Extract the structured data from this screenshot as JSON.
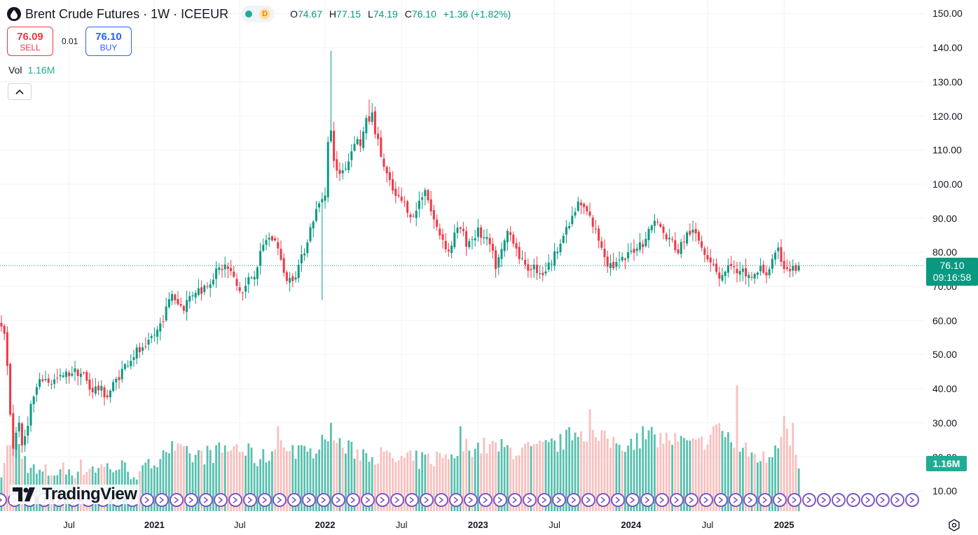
{
  "legend": {
    "title": "Brent Crude Futures · 1W · ICEEUR",
    "status_letter": "D",
    "open_label": "O",
    "open": "74.67",
    "high_label": "H",
    "high": "77.15",
    "low_label": "L",
    "low": "74.19",
    "close_label": "C",
    "close": "76.10",
    "change": "+1.36 (+1.82%)"
  },
  "trade": {
    "sell_price": "76.09",
    "sell_label": "SELL",
    "spread": "0.01",
    "buy_price": "76.10",
    "buy_label": "BUY"
  },
  "volume_legend": {
    "label": "Vol",
    "value": "1.16M"
  },
  "price_tag": {
    "price": "76.10",
    "countdown": "09:16:58"
  },
  "volume_tag": "1.16M",
  "logo_text": "TradingView",
  "colors": {
    "up": "#089981",
    "down": "#f23645",
    "vol_up": "#22ab94",
    "vol_down": "#f7a9a7",
    "grid": "#f0f3fa",
    "events": "#7e57c2"
  },
  "chart_data": {
    "type": "candlestick",
    "symbol": "Brent Crude Futures",
    "interval": "1W",
    "exchange": "ICEEUR",
    "ylim": [
      5,
      153
    ],
    "y_ticks": [
      "150.00",
      "140.00",
      "130.00",
      "120.00",
      "110.00",
      "100.00",
      "90.00",
      "80.00",
      "70.00",
      "60.00",
      "50.00",
      "40.00",
      "30.00",
      "20.00",
      "10.00"
    ],
    "x_ticks": [
      {
        "label": "Jul",
        "week": 23,
        "year": false
      },
      {
        "label": "2021",
        "week": 52,
        "year": true
      },
      {
        "label": "Jul",
        "week": 81,
        "year": false
      },
      {
        "label": "2022",
        "week": 110,
        "year": true
      },
      {
        "label": "Jul",
        "week": 136,
        "year": false
      },
      {
        "label": "2023",
        "week": 162,
        "year": true
      },
      {
        "label": "Jul",
        "week": 188,
        "year": false
      },
      {
        "label": "2024",
        "week": 214,
        "year": true
      },
      {
        "label": "Jul",
        "week": 240,
        "year": false
      },
      {
        "label": "2025",
        "week": 266,
        "year": true
      }
    ],
    "first_week": 0,
    "last_week": 271,
    "last_candle": {
      "open": 74.67,
      "high": 77.15,
      "low": 74.19,
      "close": 76.1
    },
    "last_volume": "1.16M",
    "close_anchors": [
      [
        0,
        58
      ],
      [
        1,
        55
      ],
      [
        2,
        46
      ],
      [
        3,
        33
      ],
      [
        4,
        23
      ],
      [
        5,
        27
      ],
      [
        6,
        31
      ],
      [
        7,
        22
      ],
      [
        8,
        26
      ],
      [
        10,
        35
      ],
      [
        12,
        40
      ],
      [
        14,
        43
      ],
      [
        17,
        42
      ],
      [
        20,
        43
      ],
      [
        24,
        45
      ],
      [
        26,
        45
      ],
      [
        28,
        44
      ],
      [
        30,
        40
      ],
      [
        33,
        40
      ],
      [
        36,
        38
      ],
      [
        38,
        41
      ],
      [
        40,
        44
      ],
      [
        43,
        48
      ],
      [
        46,
        51
      ],
      [
        49,
        51
      ],
      [
        51,
        55
      ],
      [
        53,
        57
      ],
      [
        56,
        63
      ],
      [
        58,
        68
      ],
      [
        60,
        65
      ],
      [
        62,
        64
      ],
      [
        64,
        67
      ],
      [
        66,
        69
      ],
      [
        68,
        69
      ],
      [
        70,
        71
      ],
      [
        72,
        73
      ],
      [
        74,
        75
      ],
      [
        76,
        76
      ],
      [
        78,
        74
      ],
      [
        80,
        70
      ],
      [
        82,
        68
      ],
      [
        84,
        72
      ],
      [
        86,
        74
      ],
      [
        88,
        79
      ],
      [
        90,
        84
      ],
      [
        92,
        84
      ],
      [
        94,
        82
      ],
      [
        96,
        73
      ],
      [
        98,
        72
      ],
      [
        100,
        74
      ],
      [
        102,
        78
      ],
      [
        104,
        84
      ],
      [
        106,
        90
      ],
      [
        108,
        94
      ],
      [
        110,
        98
      ],
      [
        111,
        112
      ],
      [
        112,
        115
      ],
      [
        113,
        108
      ],
      [
        114,
        103
      ],
      [
        116,
        104
      ],
      [
        118,
        107
      ],
      [
        120,
        113
      ],
      [
        122,
        112
      ],
      [
        124,
        118
      ],
      [
        126,
        120
      ],
      [
        128,
        112
      ],
      [
        130,
        105
      ],
      [
        132,
        100
      ],
      [
        134,
        96
      ],
      [
        136,
        95
      ],
      [
        138,
        93
      ],
      [
        140,
        90
      ],
      [
        142,
        95
      ],
      [
        144,
        99
      ],
      [
        146,
        92
      ],
      [
        148,
        87
      ],
      [
        150,
        84
      ],
      [
        152,
        80
      ],
      [
        154,
        85
      ],
      [
        156,
        87
      ],
      [
        158,
        83
      ],
      [
        160,
        84
      ],
      [
        162,
        86
      ],
      [
        164,
        84
      ],
      [
        166,
        82
      ],
      [
        168,
        76
      ],
      [
        170,
        80
      ],
      [
        172,
        86
      ],
      [
        174,
        84
      ],
      [
        176,
        79
      ],
      [
        178,
        75
      ],
      [
        180,
        76
      ],
      [
        182,
        75
      ],
      [
        184,
        74
      ],
      [
        186,
        76
      ],
      [
        188,
        79
      ],
      [
        190,
        84
      ],
      [
        192,
        86
      ],
      [
        194,
        90
      ],
      [
        196,
        94
      ],
      [
        198,
        93
      ],
      [
        200,
        90
      ],
      [
        202,
        86
      ],
      [
        204,
        82
      ],
      [
        206,
        77
      ],
      [
        208,
        76
      ],
      [
        210,
        77
      ],
      [
        212,
        78
      ],
      [
        214,
        80
      ],
      [
        216,
        82
      ],
      [
        218,
        83
      ],
      [
        220,
        86
      ],
      [
        222,
        90
      ],
      [
        224,
        87
      ],
      [
        226,
        84
      ],
      [
        228,
        83
      ],
      [
        230,
        80
      ],
      [
        232,
        84
      ],
      [
        234,
        86
      ],
      [
        236,
        85
      ],
      [
        238,
        82
      ],
      [
        240,
        79
      ],
      [
        242,
        77
      ],
      [
        244,
        73
      ],
      [
        246,
        74
      ],
      [
        248,
        77
      ],
      [
        250,
        73
      ],
      [
        252,
        74
      ],
      [
        254,
        73
      ],
      [
        256,
        73
      ],
      [
        258,
        75
      ],
      [
        260,
        74
      ],
      [
        262,
        77
      ],
      [
        264,
        80
      ],
      [
        266,
        76
      ],
      [
        268,
        75
      ],
      [
        270,
        75
      ],
      [
        271,
        76.1
      ]
    ],
    "volume_anchors": [
      [
        0,
        17
      ],
      [
        4,
        27
      ],
      [
        8,
        19
      ],
      [
        12,
        15
      ],
      [
        20,
        16
      ],
      [
        30,
        17
      ],
      [
        40,
        17
      ],
      [
        48,
        15
      ],
      [
        56,
        23
      ],
      [
        64,
        20
      ],
      [
        72,
        21
      ],
      [
        80,
        23
      ],
      [
        88,
        19
      ],
      [
        96,
        24
      ],
      [
        104,
        20
      ],
      [
        110,
        27
      ],
      [
        118,
        22
      ],
      [
        126,
        21
      ],
      [
        134,
        19
      ],
      [
        142,
        19
      ],
      [
        150,
        20
      ],
      [
        158,
        23
      ],
      [
        166,
        23
      ],
      [
        174,
        22
      ],
      [
        182,
        22
      ],
      [
        190,
        24
      ],
      [
        196,
        28
      ],
      [
        204,
        25
      ],
      [
        212,
        24
      ],
      [
        220,
        26
      ],
      [
        228,
        25
      ],
      [
        236,
        23
      ],
      [
        244,
        28
      ],
      [
        252,
        22
      ],
      [
        260,
        19
      ],
      [
        266,
        28
      ],
      [
        270,
        21
      ],
      [
        271,
        16.6
      ]
    ],
    "volume_peaks": [
      [
        4,
        29
      ],
      [
        94,
        29
      ],
      [
        112,
        30
      ],
      [
        156,
        29
      ],
      [
        200,
        34
      ],
      [
        218,
        29
      ],
      [
        242,
        29
      ],
      [
        250,
        41
      ],
      [
        266,
        32
      ],
      [
        269,
        30
      ]
    ],
    "volume_display": "volume bars scaled into lower band, peaks labeled in millions-equivalent units",
    "event_markers": 63
  }
}
